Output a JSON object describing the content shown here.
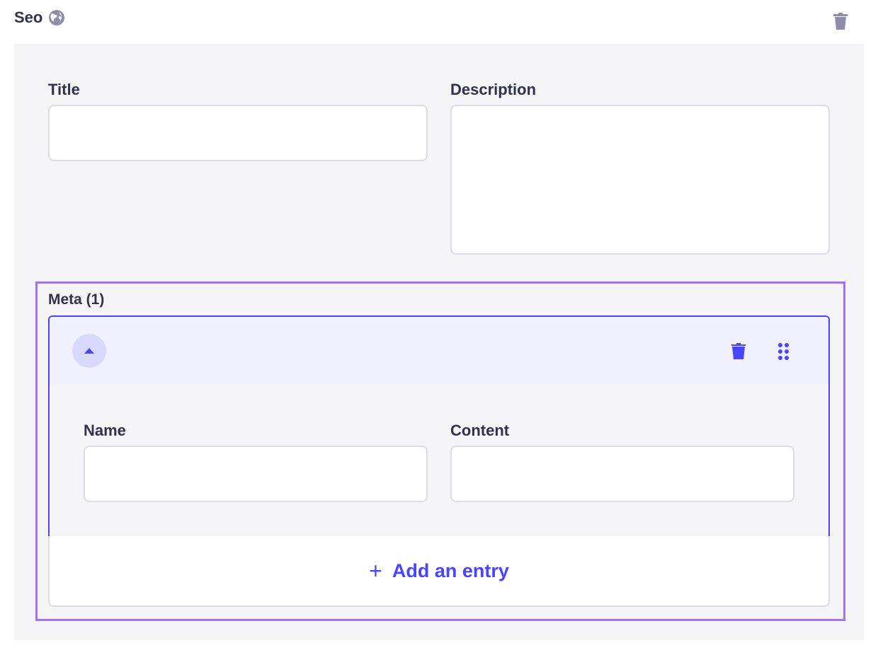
{
  "component": {
    "title": "Seo",
    "icon": "globe-icon",
    "delete_icon": "trash-icon"
  },
  "fields": {
    "title": {
      "label": "Title",
      "value": ""
    },
    "description": {
      "label": "Description",
      "value": ""
    }
  },
  "meta": {
    "label": "Meta (1)",
    "entry": {
      "collapse_icon": "caret-up-icon",
      "delete_icon": "trash-icon",
      "drag_icon": "drag-handle-icon",
      "name": {
        "label": "Name",
        "value": ""
      },
      "content": {
        "label": "Content",
        "value": ""
      }
    },
    "add_label": "Add an entry"
  },
  "colors": {
    "primary": "#4945ff",
    "focus_outline": "#a570f5",
    "panel_bg": "#f5f5f8",
    "entry_header_bg": "#f0f0ff"
  }
}
